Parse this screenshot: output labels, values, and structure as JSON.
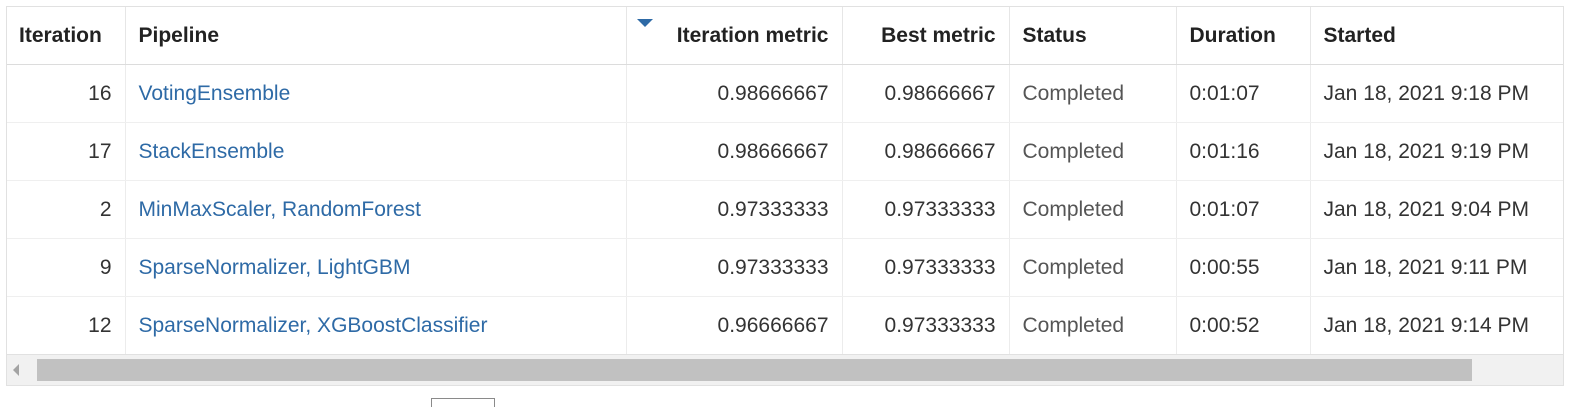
{
  "table": {
    "headers": {
      "iteration": "Iteration",
      "pipeline": "Pipeline",
      "iteration_metric": "Iteration metric",
      "best_metric": "Best metric",
      "status": "Status",
      "duration": "Duration",
      "started": "Started"
    },
    "sort": {
      "column": "iteration_metric",
      "direction": "descending"
    },
    "rows": [
      {
        "iteration": "16",
        "pipeline": "VotingEnsemble",
        "iteration_metric": "0.98666667",
        "best_metric": "0.98666667",
        "status": "Completed",
        "duration": "0:01:07",
        "started": "Jan 18, 2021 9:18 PM"
      },
      {
        "iteration": "17",
        "pipeline": "StackEnsemble",
        "iteration_metric": "0.98666667",
        "best_metric": "0.98666667",
        "status": "Completed",
        "duration": "0:01:16",
        "started": "Jan 18, 2021 9:19 PM"
      },
      {
        "iteration": "2",
        "pipeline": "MinMaxScaler, RandomForest",
        "iteration_metric": "0.97333333",
        "best_metric": "0.97333333",
        "status": "Completed",
        "duration": "0:01:07",
        "started": "Jan 18, 2021 9:04 PM"
      },
      {
        "iteration": "9",
        "pipeline": "SparseNormalizer, LightGBM",
        "iteration_metric": "0.97333333",
        "best_metric": "0.97333333",
        "status": "Completed",
        "duration": "0:00:55",
        "started": "Jan 18, 2021 9:11 PM"
      },
      {
        "iteration": "12",
        "pipeline": "SparseNormalizer, XGBoostClassifier",
        "iteration_metric": "0.96666667",
        "best_metric": "0.97333333",
        "status": "Completed",
        "duration": "0:00:52",
        "started": "Jan 18, 2021 9:14 PM"
      }
    ]
  },
  "colors": {
    "link": "#2e6aa6",
    "sort_indicator": "#2e6aa6",
    "scroll_thumb": "#c1c1c1"
  },
  "icons": {
    "sort": "sort-descending-icon",
    "scroll_left": "scroll-left-arrow-icon"
  }
}
